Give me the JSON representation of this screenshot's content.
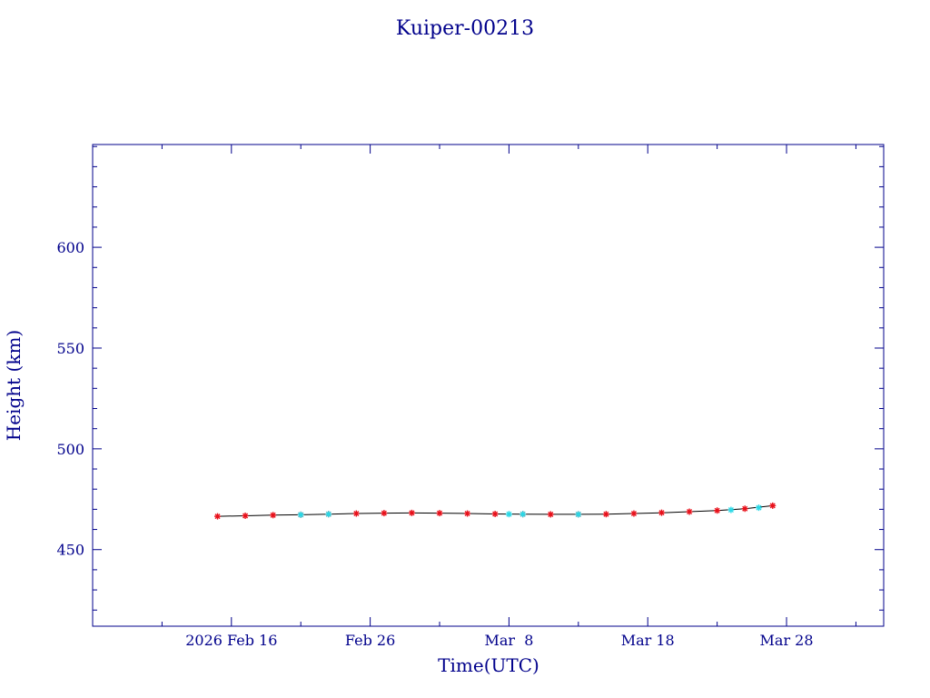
{
  "chart_data": {
    "type": "scatter",
    "title": "Kuiper-00213",
    "xlabel": "Time(UTC)",
    "ylabel": "Height (km)",
    "xlim": [
      "2026-02-06",
      "2026-04-04"
    ],
    "ylim": [
      412,
      651
    ],
    "x_ticks": [
      {
        "date": "2026-02-16",
        "label": "2026 Feb 16"
      },
      {
        "date": "2026-02-26",
        "label": "Feb 26"
      },
      {
        "date": "2026-03-08",
        "label": "Mar  8"
      },
      {
        "date": "2026-03-18",
        "label": "Mar 18"
      },
      {
        "date": "2026-03-28",
        "label": "Mar 28"
      }
    ],
    "x_minor_ticks": [
      "2026-02-11",
      "2026-02-21",
      "2026-03-03",
      "2026-03-13",
      "2026-03-23",
      "2026-04-02"
    ],
    "y_ticks": [
      450,
      500,
      550,
      600
    ],
    "y_minor_step": 10,
    "grid": false,
    "colors": {
      "axis": "#00008b",
      "primary": "#e8101a",
      "secondary": "#2ad8e6",
      "trend": "#000000"
    },
    "series": [
      {
        "color": "#e8101a",
        "marker": "star",
        "x": [
          "2026-02-15",
          "2026-02-17",
          "2026-02-19",
          "2026-02-21",
          "2026-02-23",
          "2026-02-25",
          "2026-02-27",
          "2026-03-01",
          "2026-03-03",
          "2026-03-05",
          "2026-03-07",
          "2026-03-09",
          "2026-03-11",
          "2026-03-13",
          "2026-03-15",
          "2026-03-17",
          "2026-03-19",
          "2026-03-21",
          "2026-03-23",
          "2026-03-25",
          "2026-03-27"
        ],
        "y": [
          466.5,
          466.8,
          467.1,
          467.3,
          467.6,
          467.9,
          468.1,
          468.2,
          468.1,
          467.9,
          467.7,
          467.6,
          467.5,
          467.5,
          467.6,
          467.9,
          468.3,
          468.8,
          469.4,
          470.3,
          471.8
        ]
      },
      {
        "color": "#2ad8e6",
        "marker": "star",
        "x": [
          "2026-02-21",
          "2026-02-23",
          "2026-03-08",
          "2026-03-09",
          "2026-03-13",
          "2026-03-24",
          "2026-03-26"
        ],
        "y": [
          467.3,
          467.6,
          467.6,
          467.6,
          467.5,
          469.7,
          470.8
        ]
      }
    ]
  }
}
